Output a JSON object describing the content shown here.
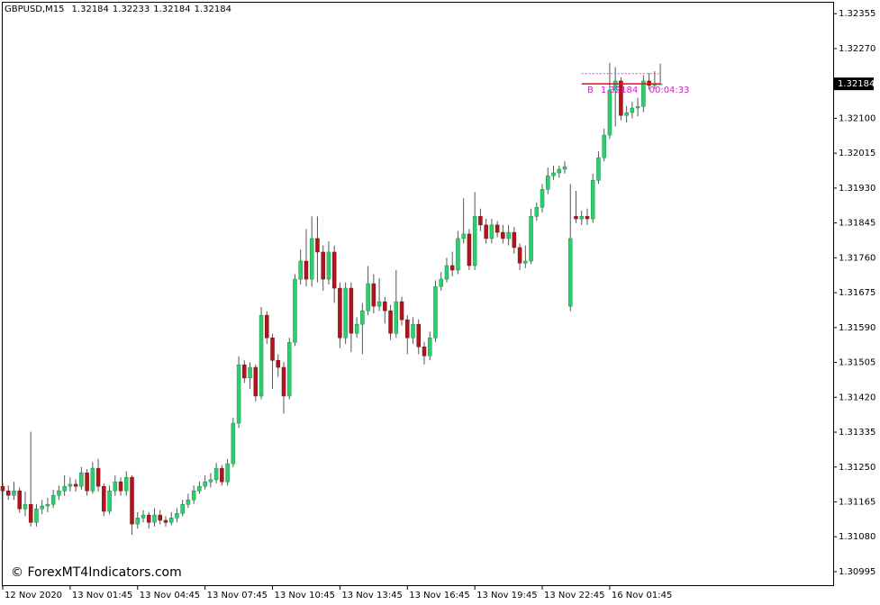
{
  "chart_data": {
    "type": "candlestick",
    "symbol": "GBPUSD,M15",
    "watermark": "© ForexMT4Indicators.com",
    "bid_marker": "B",
    "countdown": "00:04:33",
    "ask": 1.32209,
    "up_color": "#2bcf6e",
    "down_color": "#b3141c",
    "line_color": "#e01010",
    "ask_color": "#e040e0",
    "label_color": "#d020d0",
    "ylim": [
      1.30962,
      1.32384
    ],
    "yticks": [
      1.32355,
      {
        "value": 1.3227,
        "label": "1.32270"
      },
      {
        "value": 1.321,
        "label": "1.32100"
      },
      1.32015,
      {
        "value": 1.3193,
        "label": "1.31930"
      },
      1.31845,
      {
        "value": 1.3176,
        "label": "1.31760"
      },
      1.31675,
      {
        "value": 1.3159,
        "label": "1.31590"
      },
      1.31505,
      {
        "value": 1.3142,
        "label": "1.31420"
      },
      1.31335,
      {
        "value": 1.3125,
        "label": "1.31250"
      },
      1.31165,
      {
        "value": 1.3108,
        "label": "1.31080"
      },
      1.30995
    ],
    "xticks": [
      {
        "value": 0,
        "label": "12 Nov 2020"
      },
      {
        "value": 12,
        "label": "13 Nov 01:45"
      },
      {
        "value": 24,
        "label": "13 Nov 04:45"
      },
      {
        "value": 36,
        "label": "13 Nov 07:45"
      },
      {
        "value": 48,
        "label": "13 Nov 10:45"
      },
      {
        "value": 60,
        "label": "13 Nov 13:45"
      },
      {
        "value": 72,
        "label": "13 Nov 16:45"
      },
      {
        "value": 84,
        "label": "13 Nov 19:45"
      },
      {
        "value": 96,
        "label": "13 Nov 22:45"
      },
      {
        "value": 108,
        "label": "16 Nov 01:45"
      }
    ],
    "open": [
      1.31203,
      1.31192,
      1.31181,
      1.31192,
      1.31148,
      1.31159,
      1.31115,
      1.31148,
      1.31155,
      1.31159,
      1.31181,
      1.31192,
      1.31203,
      1.31208,
      1.31203,
      1.31236,
      1.31192,
      1.31247,
      1.31203,
      1.31142,
      1.31192,
      1.31214,
      1.31192,
      1.31225,
      1.31111,
      1.31126,
      1.31133,
      1.31115,
      1.31133,
      1.3112,
      1.31115,
      1.31126,
      1.31137,
      1.31159,
      1.3117,
      1.31192,
      1.31203,
      1.31214,
      1.31219,
      1.31247,
      1.31214,
      1.31258,
      1.31357,
      1.31499,
      1.31467,
      1.31493,
      1.31423,
      1.3162,
      1.31565,
      1.3151,
      1.31493,
      1.31423,
      1.31554,
      1.31708,
      1.31752,
      1.31708,
      1.31807,
      1.31774,
      1.31708,
      1.31774,
      1.31686,
      1.31565,
      1.31686,
      1.31576,
      1.31598,
      1.31631,
      1.31697,
      1.31642,
      1.31653,
      1.31631,
      1.31576,
      1.31653,
      1.31609,
      1.31565,
      1.31598,
      1.31543,
      1.31521,
      1.31565,
      1.3169,
      1.31708,
      1.31741,
      1.3173,
      1.31807,
      1.31818,
      1.31741,
      1.31861,
      1.3184,
      1.31807,
      1.3184,
      1.31822,
      1.31807,
      1.31822,
      1.31785,
      1.31747,
      1.31752,
      1.31861,
      1.31883,
      1.31927,
      1.3196,
      1.31967,
      1.31976,
      1.31642,
      1.31861,
      1.31855,
      1.31861,
      1.31855,
      1.31949,
      1.32004,
      1.32059,
      1.32169,
      1.32191,
      1.32107,
      1.32114,
      1.32125,
      1.32129,
      1.32191,
      1.3218,
      1.32184
    ],
    "high": [
      1.31212,
      1.31205,
      1.31214,
      1.312,
      1.3119,
      1.31336,
      1.3116,
      1.3117,
      1.31175,
      1.31195,
      1.31205,
      1.3123,
      1.31225,
      1.3122,
      1.3125,
      1.31245,
      1.31262,
      1.3127,
      1.3121,
      1.31205,
      1.3123,
      1.31225,
      1.3124,
      1.3123,
      1.3114,
      1.31145,
      1.3114,
      1.3115,
      1.31145,
      1.3113,
      1.3114,
      1.3115,
      1.3117,
      1.31185,
      1.31205,
      1.31215,
      1.3123,
      1.31235,
      1.3126,
      1.31255,
      1.3127,
      1.3137,
      1.3152,
      1.3151,
      1.31505,
      1.315,
      1.3164,
      1.3163,
      1.31575,
      1.31525,
      1.31505,
      1.31565,
      1.3172,
      1.3178,
      1.3183,
      1.31861,
      1.31861,
      1.3179,
      1.318,
      1.3179,
      1.317,
      1.317,
      1.317,
      1.31615,
      1.3165,
      1.3174,
      1.3172,
      1.3171,
      1.31665,
      1.31645,
      1.3173,
      1.31665,
      1.3162,
      1.31615,
      1.3161,
      1.31555,
      1.3158,
      1.31705,
      1.31725,
      1.3176,
      1.31775,
      1.31825,
      1.31905,
      1.3183,
      1.3192,
      1.3188,
      1.31855,
      1.31855,
      1.3185,
      1.3184,
      1.3184,
      1.31835,
      1.31795,
      1.3179,
      1.3188,
      1.31895,
      1.3194,
      1.3198,
      1.31985,
      1.31985,
      1.31995,
      1.3194,
      1.31923,
      1.31875,
      1.3188,
      1.31965,
      1.3202,
      1.32075,
      1.32235,
      1.32225,
      1.322,
      1.3213,
      1.3214,
      1.3215,
      1.32205,
      1.3221,
      1.32215,
      1.32233
    ],
    "low": [
      1.31072,
      1.3117,
      1.3117,
      1.31138,
      1.3113,
      1.31105,
      1.31105,
      1.31135,
      1.3114,
      1.3115,
      1.3117,
      1.3118,
      1.3119,
      1.3119,
      1.31195,
      1.3118,
      1.31185,
      1.3119,
      1.3113,
      1.31135,
      1.3118,
      1.3118,
      1.3118,
      1.31085,
      1.311,
      1.31115,
      1.311,
      1.31105,
      1.3111,
      1.31105,
      1.31108,
      1.31115,
      1.3113,
      1.3115,
      1.3116,
      1.31185,
      1.31195,
      1.312,
      1.3121,
      1.31205,
      1.31205,
      1.3125,
      1.31345,
      1.31455,
      1.3144,
      1.3141,
      1.31415,
      1.3155,
      1.3144,
      1.3147,
      1.3138,
      1.31415,
      1.31545,
      1.31695,
      1.3169,
      1.3169,
      1.317,
      1.3168,
      1.31695,
      1.3165,
      1.3154,
      1.3155,
      1.3153,
      1.31565,
      1.31525,
      1.3162,
      1.31625,
      1.3163,
      1.316,
      1.3156,
      1.31565,
      1.31595,
      1.31525,
      1.3155,
      1.31525,
      1.315,
      1.3151,
      1.31555,
      1.3168,
      1.317,
      1.31715,
      1.3172,
      1.31795,
      1.3173,
      1.3173,
      1.31825,
      1.31795,
      1.31795,
      1.3181,
      1.31795,
      1.3179,
      1.3177,
      1.3173,
      1.31735,
      1.31745,
      1.3185,
      1.3187,
      1.31915,
      1.3195,
      1.31955,
      1.31965,
      1.3163,
      1.31845,
      1.3184,
      1.3184,
      1.31845,
      1.3194,
      1.31995,
      1.3205,
      1.3208,
      1.32095,
      1.3209,
      1.321,
      1.32105,
      1.32115,
      1.3217,
      1.32172,
      1.32184
    ],
    "close": [
      1.31192,
      1.31181,
      1.31192,
      1.31148,
      1.31159,
      1.31115,
      1.31148,
      1.31155,
      1.31159,
      1.31181,
      1.31192,
      1.31203,
      1.31208,
      1.31203,
      1.31236,
      1.31192,
      1.31247,
      1.31203,
      1.31142,
      1.31192,
      1.31214,
      1.31192,
      1.31225,
      1.31111,
      1.31126,
      1.31133,
      1.31115,
      1.31133,
      1.3112,
      1.31115,
      1.31126,
      1.31137,
      1.31159,
      1.3117,
      1.31192,
      1.31203,
      1.31214,
      1.31219,
      1.31247,
      1.31214,
      1.31258,
      1.31357,
      1.31499,
      1.31467,
      1.31493,
      1.31423,
      1.3162,
      1.31565,
      1.3151,
      1.31493,
      1.31423,
      1.31554,
      1.31708,
      1.31752,
      1.31708,
      1.31807,
      1.31774,
      1.31708,
      1.31774,
      1.31686,
      1.31565,
      1.31686,
      1.31576,
      1.31598,
      1.31631,
      1.31697,
      1.31642,
      1.31653,
      1.31631,
      1.31576,
      1.31653,
      1.31609,
      1.31565,
      1.31598,
      1.31543,
      1.31521,
      1.31565,
      1.3169,
      1.31708,
      1.31741,
      1.3173,
      1.31807,
      1.31818,
      1.31741,
      1.31861,
      1.3184,
      1.31807,
      1.3184,
      1.31822,
      1.31807,
      1.31822,
      1.31785,
      1.31747,
      1.31752,
      1.31861,
      1.31883,
      1.31927,
      1.3196,
      1.31967,
      1.31976,
      1.31982,
      1.31807,
      1.31855,
      1.31861,
      1.31855,
      1.31949,
      1.32004,
      1.32059,
      1.32169,
      1.32191,
      1.32107,
      1.32114,
      1.32125,
      1.32129,
      1.32191,
      1.3218,
      1.32184,
      1.32184
    ]
  }
}
